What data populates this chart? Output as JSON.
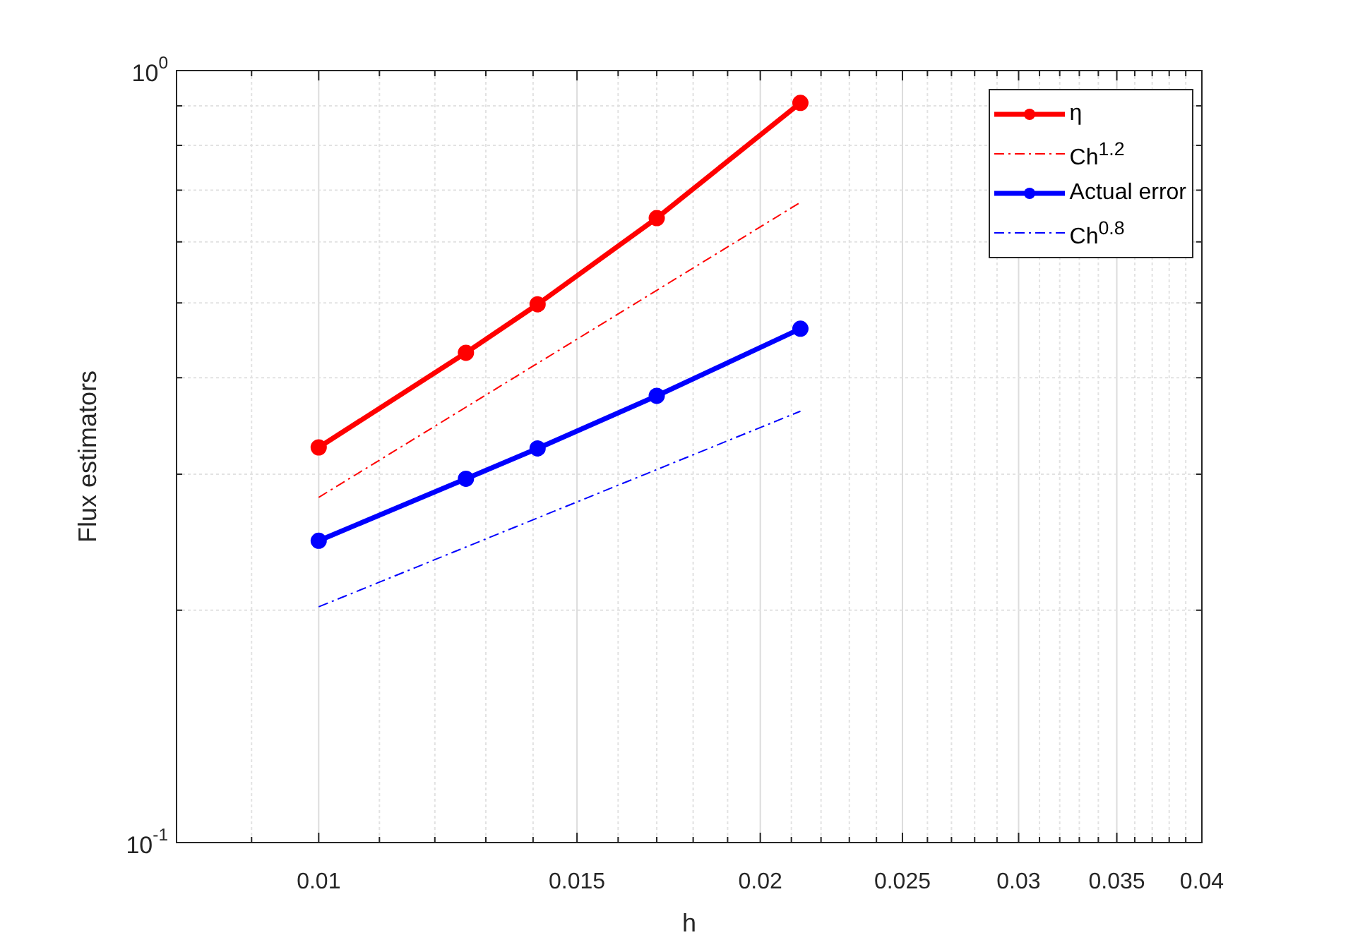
{
  "chart_data": {
    "type": "line",
    "xlabel": "h",
    "ylabel": "Flux estimators",
    "log": "xy",
    "xlim": [
      0.008,
      0.04
    ],
    "ylim": [
      0.1,
      1
    ],
    "xticks": [
      {
        "value": 0.008,
        "label": null
      },
      {
        "value": 0.009,
        "label": null
      },
      0.01,
      {
        "value": 0.011,
        "label": null
      },
      {
        "value": 0.012,
        "label": null
      },
      {
        "value": 0.013,
        "label": null
      },
      {
        "value": 0.014,
        "label": null
      },
      0.015,
      {
        "value": 0.016,
        "label": null
      },
      {
        "value": 0.017,
        "label": null
      },
      {
        "value": 0.018,
        "label": null
      },
      {
        "value": 0.019,
        "label": null
      },
      0.02,
      {
        "value": 0.021,
        "label": null
      },
      {
        "value": 0.022,
        "label": null
      },
      {
        "value": 0.023,
        "label": null
      },
      {
        "value": 0.024,
        "label": null
      },
      0.025,
      {
        "value": 0.026,
        "label": null
      },
      {
        "value": 0.027,
        "label": null
      },
      {
        "value": 0.028,
        "label": null
      },
      {
        "value": 0.029,
        "label": null
      },
      0.03,
      {
        "value": 0.031,
        "label": null
      },
      {
        "value": 0.032,
        "label": null
      },
      {
        "value": 0.033,
        "label": null
      },
      {
        "value": 0.034,
        "label": null
      },
      0.035,
      {
        "value": 0.036,
        "label": null
      },
      {
        "value": 0.037,
        "label": null
      },
      {
        "value": 0.038,
        "label": null
      },
      {
        "value": 0.039,
        "label": null
      },
      0.04
    ],
    "yticks": [
      {
        "value": 0.1,
        "label": "10$^{-1}$"
      },
      {
        "value": 0.2,
        "label": null
      },
      {
        "value": 0.3,
        "label": null
      },
      {
        "value": 0.4,
        "label": null
      },
      {
        "value": 0.5,
        "label": null
      },
      {
        "value": 0.6,
        "label": null
      },
      {
        "value": 0.7,
        "label": null
      },
      {
        "value": 0.8,
        "label": null
      },
      {
        "value": 0.9,
        "label": null
      },
      {
        "value": 1,
        "label": "10$^{0}$"
      }
    ],
    "grid": true,
    "legend": "top right",
    "series": [
      {
        "name": "η",
        "color": "#ff0000",
        "x": [
          0.01,
          0.0126,
          0.0141,
          0.017,
          0.0213
        ],
        "values": [
          0.325,
          0.431,
          0.498,
          0.644,
          0.908
        ],
        "marker": "circle",
        "line_style": "solid"
      },
      {
        "name": "Ch$^{1.2}$",
        "color": "#ff0000",
        "x": [
          0.01,
          0.0213
        ],
        "values": [
          0.28,
          0.675
        ],
        "marker": "none",
        "line_style": "dashed"
      },
      {
        "name": "Actual error",
        "color": "#0000ff",
        "x": [
          0.01,
          0.0126,
          0.0141,
          0.017,
          0.0213
        ],
        "values": [
          0.246,
          0.296,
          0.324,
          0.379,
          0.463
        ],
        "marker": "circle",
        "line_style": "solid"
      },
      {
        "name": "Ch$^{0.8}$",
        "color": "#0000ff",
        "x": [
          0.01,
          0.0213
        ],
        "values": [
          0.202,
          0.362
        ],
        "marker": "none",
        "line_style": "dashed"
      }
    ]
  }
}
